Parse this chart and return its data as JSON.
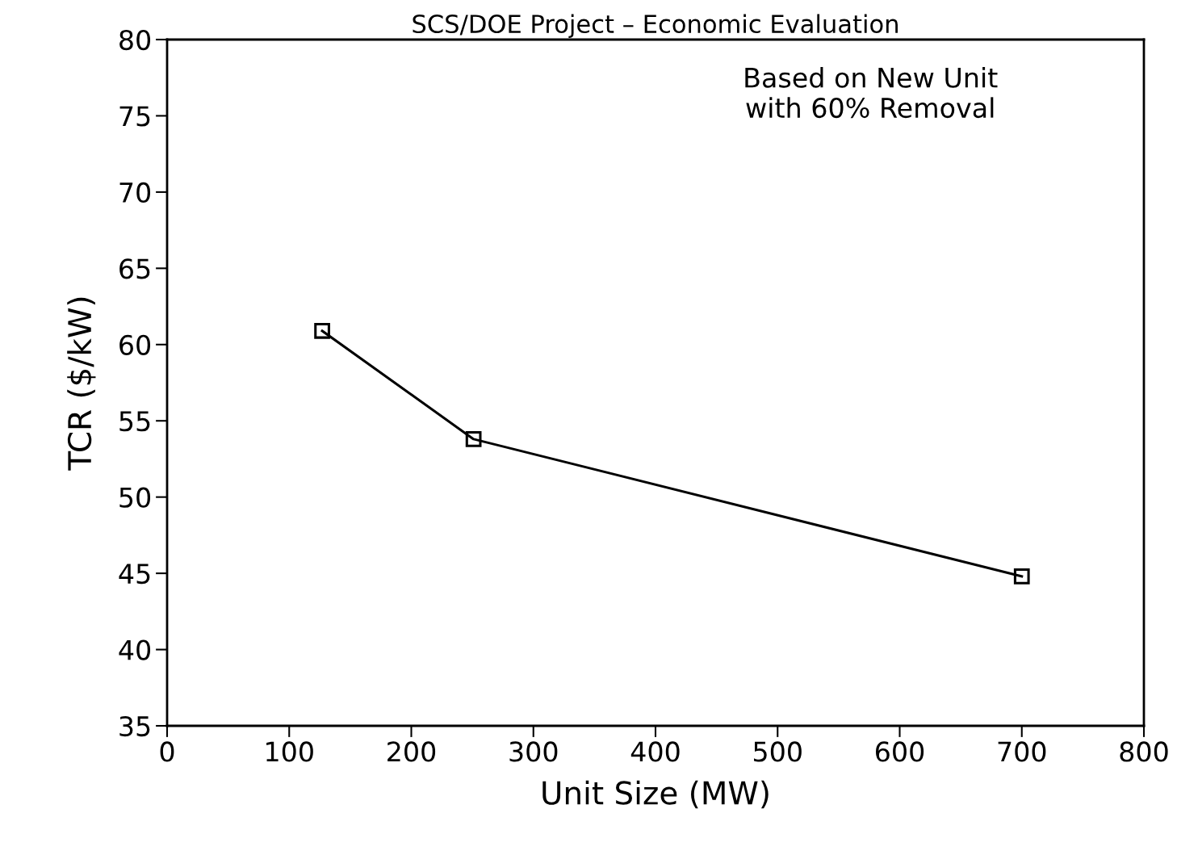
{
  "chart_data": {
    "type": "line",
    "title": "SCS/DOE Project – Economic Evaluation",
    "xlabel": "Unit Size (MW)",
    "ylabel": "TCR ($/kW)",
    "annotations": [
      "Based on New Unit\nwith 60% Removal"
    ],
    "x": [
      127,
      251,
      700
    ],
    "series": [
      {
        "color": "#000000",
        "values": [
          60.9,
          53.8,
          44.8
        ]
      }
    ],
    "marker": "square",
    "line_style": "solid",
    "grid": false,
    "legend": false,
    "xlim": [
      0,
      800
    ],
    "xticks": [
      0,
      100,
      200,
      300,
      400,
      500,
      600,
      700,
      800
    ],
    "ylim": [
      35,
      80
    ],
    "yticks": [
      35,
      40,
      45,
      50,
      55,
      60,
      65,
      70,
      75,
      80
    ]
  }
}
